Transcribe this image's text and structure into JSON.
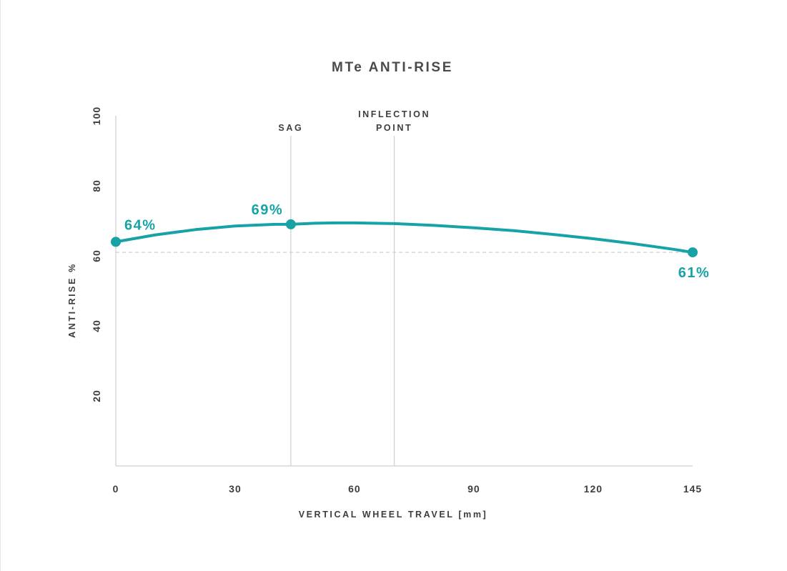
{
  "chart_data": {
    "type": "line",
    "title": "MTe ANTI-RISE",
    "xlabel": "VERTICAL WHEEL TRAVEL [mm]",
    "ylabel": "ANTI-RISE %",
    "xlim": [
      0,
      145
    ],
    "ylim": [
      0,
      100
    ],
    "x_ticks": [
      0,
      30,
      60,
      90,
      120,
      145
    ],
    "y_ticks": [
      20,
      40,
      60,
      80,
      100
    ],
    "grid": false,
    "legend": "none",
    "series_color": "#17a2a6",
    "series": [
      {
        "x": [
          0,
          10,
          20,
          30,
          40,
          44,
          50,
          55,
          60,
          70,
          80,
          90,
          100,
          110,
          120,
          130,
          140,
          145
        ],
        "y": [
          64,
          66,
          67.5,
          68.5,
          69,
          69,
          69.3,
          69.4,
          69.4,
          69.2,
          68.7,
          68,
          67.2,
          66.1,
          64.9,
          63.5,
          61.9,
          61
        ]
      }
    ],
    "highlighted_points": [
      {
        "x": 0,
        "y": 64,
        "label": "64%"
      },
      {
        "x": 44,
        "y": 69,
        "label": "69%"
      },
      {
        "x": 145,
        "y": 61,
        "label": "61%"
      }
    ],
    "reference_line": {
      "y": 61,
      "style": "dashed"
    },
    "vertical_markers": [
      {
        "x": 44,
        "lines": [
          "SAG"
        ]
      },
      {
        "x": 70,
        "lines": [
          "INFLECTION",
          "POINT"
        ]
      }
    ]
  }
}
